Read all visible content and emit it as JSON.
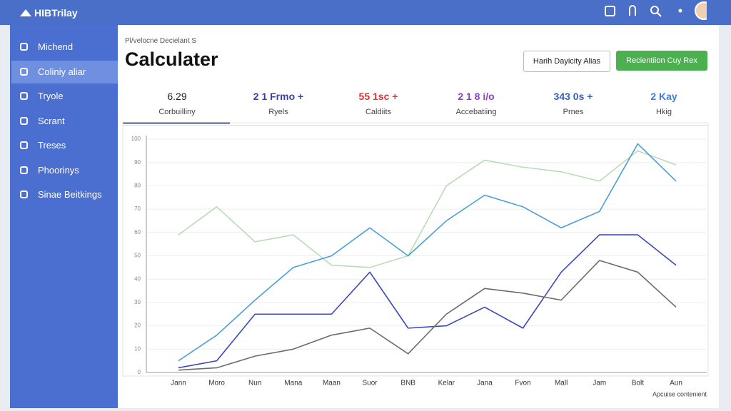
{
  "header": {
    "brand": "HIBTrilay"
  },
  "sidebar": {
    "items": [
      "Michend",
      "Coliniy aliar",
      "Tryole",
      "Scrant",
      "Treses",
      "Phoorinys",
      "Sinae Beitkings"
    ]
  },
  "main": {
    "breadcrumb": "Pl/velocne Decielant S",
    "title": "Calculater",
    "buttons": [
      "Harih Dayicity Alias",
      "Recientiion Cuy Rex"
    ],
    "stats": [
      {
        "value": "6.29",
        "label": "Corbuilliny"
      },
      {
        "value": "2 1 Frmo +",
        "label": "Ryels"
      },
      {
        "value": "55 1sc +",
        "label": "Caldiits"
      },
      {
        "value": "2 1 8 i/o",
        "label": "Accebatiing"
      },
      {
        "value": "343 0s +",
        "label": "Prnes"
      },
      {
        "value": "2 Kay",
        "label": "Hkig"
      }
    ]
  },
  "chart_data": {
    "type": "line",
    "x_label": "Apcuise contenient",
    "categories": [
      "Jann",
      "Moro",
      "Nun",
      "Mana",
      "Maan",
      "Suor",
      "BNB",
      "Kelar",
      "Jana",
      "Fvon",
      "Mall",
      "Jam",
      "Bolt",
      "Aun"
    ],
    "ylim": [
      0,
      100
    ],
    "yticks": [
      0,
      10,
      20,
      30,
      40,
      50,
      60,
      70,
      80,
      90,
      100
    ],
    "grid": true,
    "series": [
      {
        "color": "#b9dcb8",
        "values": [
          59,
          71,
          56,
          59,
          46,
          45,
          50,
          80,
          91,
          88,
          86,
          82,
          95,
          89
        ]
      },
      {
        "color": "#4a9fd8",
        "values": [
          5,
          16,
          31,
          45,
          50,
          62,
          50,
          65,
          76,
          71,
          62,
          69,
          98,
          82
        ]
      },
      {
        "color": "#3a48b8",
        "values": [
          2,
          5,
          25,
          25,
          25,
          43,
          19,
          20,
          28,
          19,
          43,
          59,
          59,
          46
        ]
      },
      {
        "color": "#6b6b6b",
        "values": [
          1,
          2,
          7,
          10,
          16,
          19,
          8,
          25,
          36,
          34,
          31,
          48,
          43,
          28
        ]
      }
    ]
  }
}
